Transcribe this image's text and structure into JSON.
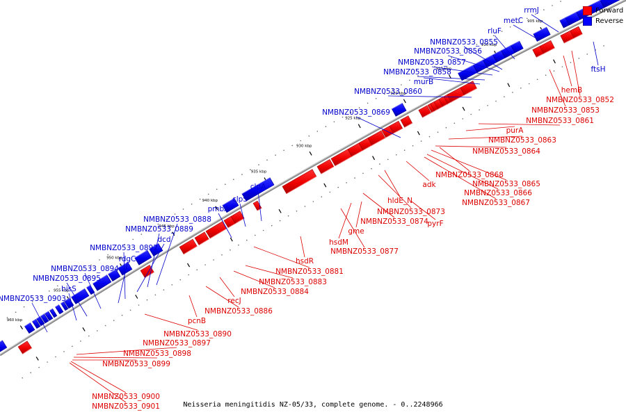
{
  "legend": {
    "forward_label": "Forward",
    "reverse_label": "Reverse",
    "forward_color": "#ff0000",
    "reverse_color": "#0000ff"
  },
  "caption": "Neisseria meningitidis NZ-05/33, complete genome. - 0..2248966",
  "ticks": [
    "905 kbp",
    "910 kbp",
    "915 kbp",
    "920 kbp",
    "925 kbp",
    "930 kbp",
    "935 kbp",
    "940 kbp",
    "945 kbp",
    "950 kbp",
    "955 kbp",
    "960 kbp"
  ],
  "genes_reverse": [
    "rrmJ",
    "metC",
    "rluF",
    "NMBNZ0533_0855",
    "NMBNZ0533_0856",
    "NMBNZ0533_0857",
    "NMBNZ0533_0858",
    "murB",
    "NMBNZ0533_0860",
    "NMBNZ0533_0869",
    "clpA",
    "clpS",
    "pmbA",
    "NMBNZ0533_0888",
    "NMBNZ0533_0889",
    "dcd",
    "NMBNZ0533_0892",
    "rdgC",
    "NMBNZ0533_0894",
    "NMBNZ0533_0895",
    "hisS",
    "NMBNZ0533_0903",
    "ftsH"
  ],
  "genes_forward": [
    "hemB",
    "NMBNZ0533_0852",
    "NMBNZ0533_0853",
    "NMBNZ0533_0861",
    "purA",
    "NMBNZ0533_0863",
    "NMBNZ0533_0864",
    "adk",
    "NMBNZ0533_0868",
    "NMBNZ0533_0865",
    "NMBNZ0533_0866",
    "NMBNZ0533_0867",
    "hldE_N",
    "NMBNZ0533_0873",
    "NMBNZ0533_0874",
    "pyrF",
    "gme",
    "hsdM",
    "NMBNZ0533_0877",
    "hsdR",
    "NMBNZ0533_0881",
    "NMBNZ0533_0883",
    "NMBNZ0533_0884",
    "recJ",
    "NMBNZ0533_0886",
    "pcnB",
    "NMBNZ0533_0890",
    "NMBNZ0533_0897",
    "NMBNZ0533_0898",
    "NMBNZ0533_0899",
    "NMBNZ0533_0900",
    "NMBNZ0533_0901"
  ]
}
